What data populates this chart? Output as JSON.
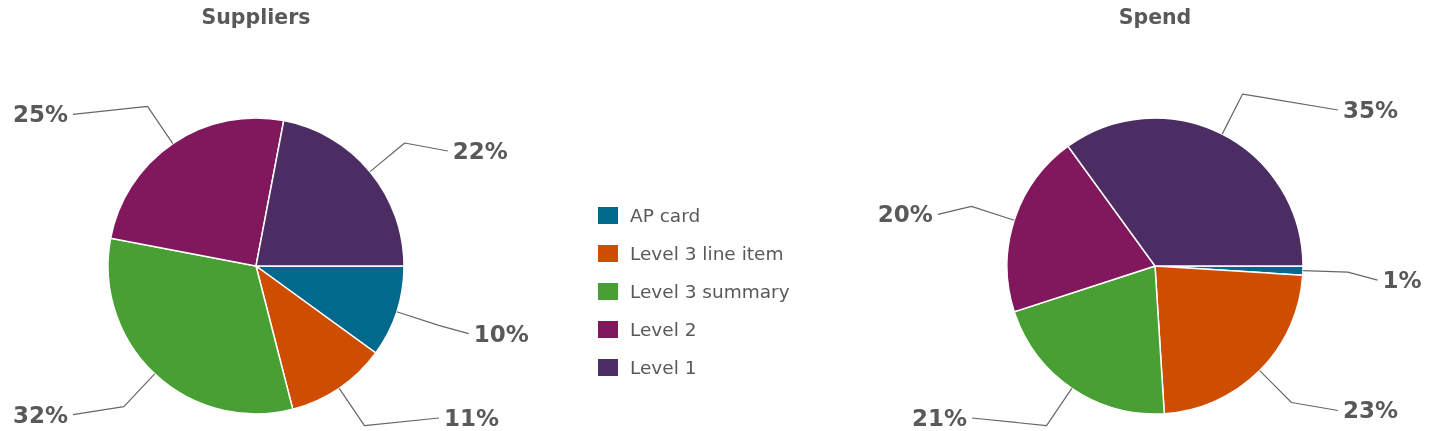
{
  "chart_data": [
    {
      "type": "pie",
      "title": "Suppliers",
      "categories": [
        "AP card",
        "Level 3 line item",
        "Level 3 summary",
        "Level 2",
        "Level 1"
      ],
      "values": [
        10,
        11,
        32,
        25,
        22
      ],
      "colors": [
        "#00698c",
        "#cf4d00",
        "#48a034",
        "#81185d",
        "#4b2d63"
      ],
      "value_labels": [
        "10%",
        "11%",
        "32%",
        "25%",
        "22%"
      ],
      "legend": "right"
    },
    {
      "type": "pie",
      "title": "Spend",
      "categories": [
        null,
        null,
        null,
        null,
        null
      ],
      "values": [
        1,
        23,
        21,
        20,
        35
      ],
      "colors": [
        "#00698c",
        "#cf4d00",
        "#48a034",
        "#81185d",
        "#4b2d63"
      ],
      "value_labels": [
        "1%",
        "23%",
        "21%",
        "20%",
        "35%"
      ]
    }
  ]
}
